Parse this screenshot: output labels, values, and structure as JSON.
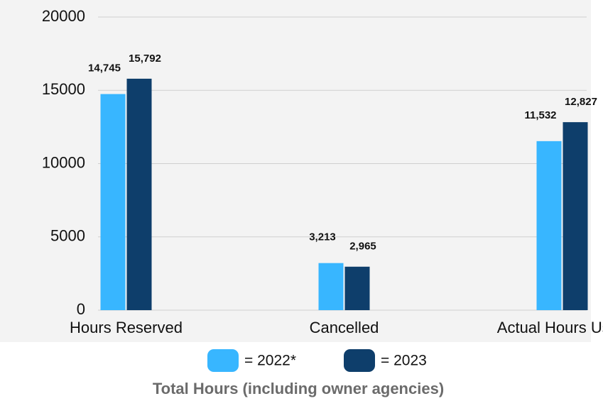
{
  "chart_data": {
    "type": "bar",
    "title": "Total Hours (including owner agencies)",
    "categories": [
      "Hours Reserved",
      "Cancelled",
      "Actual Hours Used"
    ],
    "series": [
      {
        "name": "= 2022*",
        "color": "#38b6ff",
        "values": [
          14745,
          3213,
          11532
        ],
        "value_labels": [
          "14,745",
          "3,213",
          "11,532"
        ]
      },
      {
        "name": "= 2023",
        "color": "#0e3e6b",
        "values": [
          15792,
          2965,
          12827
        ],
        "value_labels": [
          "15,792",
          "2,965",
          "12,827"
        ]
      }
    ],
    "ylim": [
      0,
      20000
    ],
    "yticks": [
      0,
      5000,
      10000,
      15000,
      20000
    ],
    "grid": true,
    "legend": "bottom"
  }
}
